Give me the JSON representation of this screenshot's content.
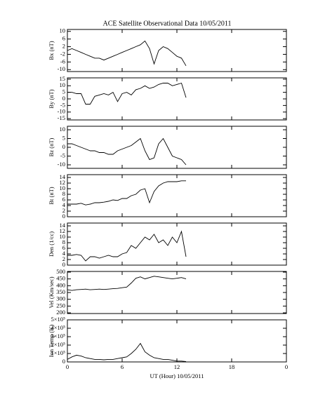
{
  "chart_data": [
    {
      "type": "line",
      "title": "ACE Satellite Observational Data   10/05/2011",
      "ylabel": "Bx (nT)",
      "color": "#000000",
      "x": [
        0,
        0.5,
        1,
        1.5,
        2,
        2.5,
        3,
        3.5,
        4,
        4.5,
        5,
        5.5,
        6,
        6.5,
        7,
        7.5,
        8,
        8.5,
        9,
        9.5,
        10,
        10.5,
        11,
        11.5,
        12,
        12.5,
        13
      ],
      "values": [
        0,
        1,
        0,
        -1,
        -2,
        -3,
        -4,
        -4,
        -5,
        -4,
        -3,
        -2,
        -1,
        0,
        1,
        2,
        3,
        5,
        1,
        -7,
        0,
        2,
        1,
        -1,
        -3,
        -4,
        -8
      ],
      "xlim": [
        0,
        24
      ],
      "xticks": [
        0,
        6,
        12,
        18,
        {
          "value": 24,
          "label": "0"
        }
      ],
      "ylim": [
        -11,
        11
      ],
      "yticks": [
        10,
        6,
        2,
        -2,
        -6,
        -10
      ]
    },
    {
      "type": "line",
      "ylabel": "By (nT)",
      "color": "#000000",
      "x": [
        0,
        0.5,
        1,
        1.5,
        2,
        2.5,
        3,
        3.5,
        4,
        4.5,
        5,
        5.5,
        6,
        6.5,
        7,
        7.5,
        8,
        8.5,
        9,
        9.5,
        10,
        10.5,
        11,
        11.5,
        12,
        12.5,
        13
      ],
      "values": [
        5,
        5,
        4,
        4,
        -4,
        -4,
        2,
        3,
        4,
        3,
        5,
        -2,
        4,
        5,
        3,
        7,
        8,
        10,
        8,
        9,
        11,
        12,
        12,
        10,
        11,
        12,
        1
      ],
      "xlim": [
        0,
        24
      ],
      "xticks": [
        0,
        6,
        12,
        18,
        {
          "value": 24,
          "label": "0"
        }
      ],
      "ylim": [
        -16,
        16
      ],
      "yticks": [
        15,
        10,
        5,
        0,
        -5,
        -10,
        -15
      ]
    },
    {
      "type": "line",
      "ylabel": "Bz (nT)",
      "color": "#000000",
      "x": [
        0,
        0.5,
        1,
        1.5,
        2,
        2.5,
        3,
        3.5,
        4,
        4.5,
        5,
        5.5,
        6,
        6.5,
        7,
        7.5,
        8,
        8.5,
        9,
        9.5,
        10,
        10.5,
        11,
        11.5,
        12,
        12.5,
        13
      ],
      "values": [
        2,
        2,
        1,
        0,
        -1,
        -2,
        -2,
        -3,
        -3,
        -4,
        -4,
        -2,
        -1,
        0,
        1,
        3,
        5,
        -2,
        -7,
        -6,
        2,
        5,
        0,
        -5,
        -6,
        -7,
        -10
      ],
      "xlim": [
        0,
        24
      ],
      "xticks": [
        0,
        6,
        12,
        18,
        {
          "value": 24,
          "label": "0"
        }
      ],
      "ylim": [
        -12,
        12
      ],
      "yticks": [
        10,
        5,
        0,
        -5,
        -10
      ]
    },
    {
      "type": "line",
      "ylabel": "Bt (nT)",
      "color": "#000000",
      "x": [
        0,
        0.5,
        1,
        1.5,
        2,
        2.5,
        3,
        3.5,
        4,
        4.5,
        5,
        5.5,
        6,
        6.5,
        7,
        7.5,
        8,
        8.5,
        9,
        9.5,
        10,
        10.5,
        11,
        11.5,
        12,
        12.5,
        13
      ],
      "values": [
        4.5,
        4.5,
        4.5,
        4.8,
        4.2,
        4.5,
        5,
        5,
        5.2,
        5.5,
        6,
        5.8,
        6.5,
        6.5,
        7.5,
        8,
        9.5,
        10,
        5,
        9,
        11,
        12,
        12.5,
        12.5,
        12.5,
        12.8,
        12.8
      ],
      "xlim": [
        0,
        24
      ],
      "xticks": [
        0,
        6,
        12,
        18,
        {
          "value": 24,
          "label": "0"
        }
      ],
      "ylim": [
        0,
        15
      ],
      "yticks": [
        14,
        12,
        10,
        8,
        6,
        4,
        2,
        0
      ]
    },
    {
      "type": "line",
      "ylabel": "Den (1/cc)",
      "color": "#000000",
      "x": [
        0,
        0.5,
        1,
        1.5,
        2,
        2.5,
        3,
        3.5,
        4,
        4.5,
        5,
        5.5,
        6,
        6.5,
        7,
        7.5,
        8,
        8.5,
        9,
        9.5,
        10,
        10.5,
        11,
        11.5,
        12,
        12.5,
        13
      ],
      "values": [
        3.5,
        3.5,
        3.8,
        3.5,
        1.5,
        3,
        3,
        2.5,
        3,
        3.5,
        3,
        3,
        4,
        4.5,
        7,
        6,
        8,
        10,
        9,
        11,
        8,
        9,
        7,
        10,
        8,
        12,
        3
      ],
      "xlim": [
        0,
        24
      ],
      "xticks": [
        0,
        6,
        12,
        18,
        {
          "value": 24,
          "label": "0"
        }
      ],
      "ylim": [
        0,
        15
      ],
      "yticks": [
        14,
        12,
        10,
        8,
        6,
        4,
        2,
        0
      ]
    },
    {
      "type": "line",
      "ylabel": "Vel (Km/sec)",
      "color": "#000000",
      "x": [
        0,
        0.5,
        1,
        1.5,
        2,
        2.5,
        3,
        3.5,
        4,
        4.5,
        5,
        5.5,
        6,
        6.5,
        7,
        7.5,
        8,
        8.5,
        9,
        9.5,
        10,
        10.5,
        11,
        11.5,
        12,
        12.5,
        13
      ],
      "values": [
        370,
        365,
        370,
        372,
        375,
        370,
        372,
        375,
        372,
        375,
        378,
        380,
        385,
        390,
        420,
        455,
        465,
        450,
        460,
        470,
        465,
        460,
        455,
        450,
        455,
        460,
        450
      ],
      "xlim": [
        0,
        24
      ],
      "xticks": [
        0,
        6,
        12,
        18,
        {
          "value": 24,
          "label": "0"
        }
      ],
      "ylim": [
        195,
        505
      ],
      "yticks": [
        500,
        450,
        400,
        350,
        300,
        250,
        200
      ]
    },
    {
      "type": "line",
      "ylabel": "Ion Temp (K)",
      "xlabel": "UT (Hour)  10/05/2011",
      "color": "#000000",
      "x": [
        0,
        0.5,
        1,
        1.5,
        2,
        2.5,
        3,
        3.5,
        4,
        4.5,
        5,
        5.5,
        6,
        6.5,
        7,
        7.5,
        8,
        8.5,
        9,
        9.5,
        10,
        10.5,
        11,
        11.5,
        12,
        12.5,
        13
      ],
      "values": [
        30000,
        60000,
        80000,
        70000,
        50000,
        40000,
        30000,
        30000,
        25000,
        30000,
        30000,
        40000,
        50000,
        60000,
        100000,
        150000,
        220000,
        120000,
        80000,
        50000,
        40000,
        30000,
        30000,
        20000,
        10000,
        10000,
        5000
      ],
      "xlim": [
        0,
        24
      ],
      "xticks": [
        0,
        6,
        12,
        18,
        {
          "value": 24,
          "label": "0"
        }
      ],
      "ylim": [
        0,
        500000
      ],
      "yticks": [
        0,
        {
          "value": 100000,
          "label": "1×10⁵"
        },
        {
          "value": 200000,
          "label": "2×10⁵"
        },
        {
          "value": 300000,
          "label": "3×10⁵"
        },
        {
          "value": 400000,
          "label": "4×10⁵"
        },
        {
          "value": 500000,
          "label": "5×10⁵"
        }
      ]
    }
  ]
}
